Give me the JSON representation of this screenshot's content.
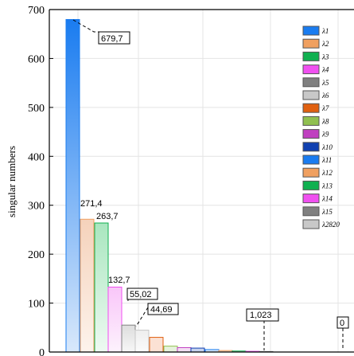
{
  "chart_data": {
    "type": "bar",
    "title": "",
    "xlabel": "",
    "ylabel": "singular numbers",
    "ylim": [
      0,
      700
    ],
    "yticks": [
      0,
      100,
      200,
      300,
      400,
      500,
      600,
      700
    ],
    "grid": true,
    "legend_position": "top-right",
    "categories": [
      "λ1",
      "λ2",
      "λ3",
      "λ4",
      "λ5",
      "λ6",
      "λ7",
      "λ8",
      "λ9",
      "λ10",
      "λ11",
      "λ12",
      "λ13",
      "λ14",
      "λ15",
      "λ2820"
    ],
    "values": [
      679.7,
      271.4,
      263.7,
      132.7,
      55.02,
      44.69,
      30,
      12,
      9,
      8,
      5,
      3,
      2,
      1.5,
      1.023,
      0
    ],
    "colors": [
      "#1a7cf0",
      "#f0a060",
      "#10b050",
      "#f050f0",
      "#808080",
      "#c8c8c8",
      "#e06010",
      "#90c050",
      "#c040c0",
      "#1040b0",
      "#1a7cf0",
      "#f0a060",
      "#10b050",
      "#f050f0",
      "#808080",
      "#c8c8c8"
    ],
    "data_labels": {
      "v1": "679,7",
      "v2": "271,4",
      "v3": "263,7",
      "v4": "132,7",
      "v5": "55,02",
      "v6": "44,69",
      "v15": "1,023",
      "v16": "0"
    }
  }
}
